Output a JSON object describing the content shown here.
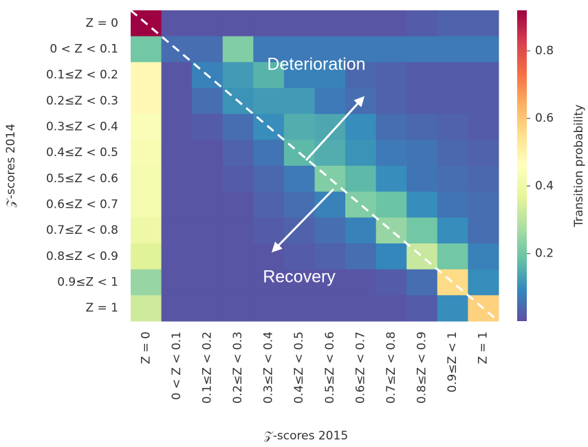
{
  "chart_data": {
    "type": "heatmap",
    "x_label": "𝒵-scores 2015",
    "y_label": "𝒵-scores 2014",
    "colorbar_label": "Transition probability",
    "colormap": "Spectral_r",
    "clim": [
      0,
      0.92
    ],
    "cticks": [
      0.2,
      0.4,
      0.6,
      0.8
    ],
    "annotations": [
      "Deterioration",
      "Recovery"
    ],
    "x_categories": [
      "Z = 0",
      "0 < Z < 0.1",
      "0.1≤Z < 0.2",
      "0.2≤Z < 0.3",
      "0.3≤Z < 0.4",
      "0.4≤Z < 0.5",
      "0.5≤Z < 0.6",
      "0.6≤Z < 0.7",
      "0.7≤Z < 0.8",
      "0.8≤Z < 0.9",
      "0.9≤Z < 1",
      "Z = 1"
    ],
    "y_categories": [
      "Z = 0",
      "0 < Z < 0.1",
      "0.1≤Z < 0.2",
      "0.2≤Z < 0.3",
      "0.3≤Z < 0.4",
      "0.4≤Z < 0.5",
      "0.5≤Z < 0.6",
      "0.6≤Z < 0.7",
      "0.7≤Z < 0.8",
      "0.8≤Z < 0.9",
      "0.9≤Z < 1",
      "Z = 1"
    ],
    "values": [
      [
        0.92,
        0.01,
        0.01,
        0.01,
        0.01,
        0.01,
        0.01,
        0.01,
        0.01,
        0.02,
        0.03,
        0.03
      ],
      [
        0.2,
        0.05,
        0.05,
        0.22,
        0.07,
        0.07,
        0.07,
        0.07,
        0.07,
        0.07,
        0.07,
        0.07
      ],
      [
        0.48,
        0.01,
        0.08,
        0.12,
        0.16,
        0.08,
        0.08,
        0.04,
        0.03,
        0.02,
        0.02,
        0.02
      ],
      [
        0.48,
        0.01,
        0.05,
        0.11,
        0.12,
        0.12,
        0.07,
        0.05,
        0.03,
        0.02,
        0.02,
        0.02
      ],
      [
        0.44,
        0.01,
        0.02,
        0.05,
        0.1,
        0.15,
        0.14,
        0.1,
        0.05,
        0.04,
        0.03,
        0.02
      ],
      [
        0.43,
        0.01,
        0.01,
        0.03,
        0.06,
        0.17,
        0.15,
        0.11,
        0.07,
        0.06,
        0.04,
        0.03
      ],
      [
        0.42,
        0.01,
        0.01,
        0.02,
        0.04,
        0.07,
        0.22,
        0.17,
        0.1,
        0.06,
        0.05,
        0.04
      ],
      [
        0.42,
        0.01,
        0.01,
        0.01,
        0.03,
        0.05,
        0.08,
        0.22,
        0.19,
        0.1,
        0.06,
        0.05
      ],
      [
        0.4,
        0.01,
        0.01,
        0.01,
        0.02,
        0.03,
        0.05,
        0.08,
        0.25,
        0.2,
        0.1,
        0.05
      ],
      [
        0.36,
        0.01,
        0.01,
        0.01,
        0.01,
        0.02,
        0.03,
        0.05,
        0.09,
        0.32,
        0.2,
        0.08
      ],
      [
        0.25,
        0.01,
        0.01,
        0.01,
        0.01,
        0.01,
        0.01,
        0.01,
        0.02,
        0.05,
        0.56,
        0.1
      ],
      [
        0.33,
        0.01,
        0.01,
        0.01,
        0.01,
        0.01,
        0.01,
        0.01,
        0.01,
        0.02,
        0.1,
        0.58
      ]
    ]
  }
}
